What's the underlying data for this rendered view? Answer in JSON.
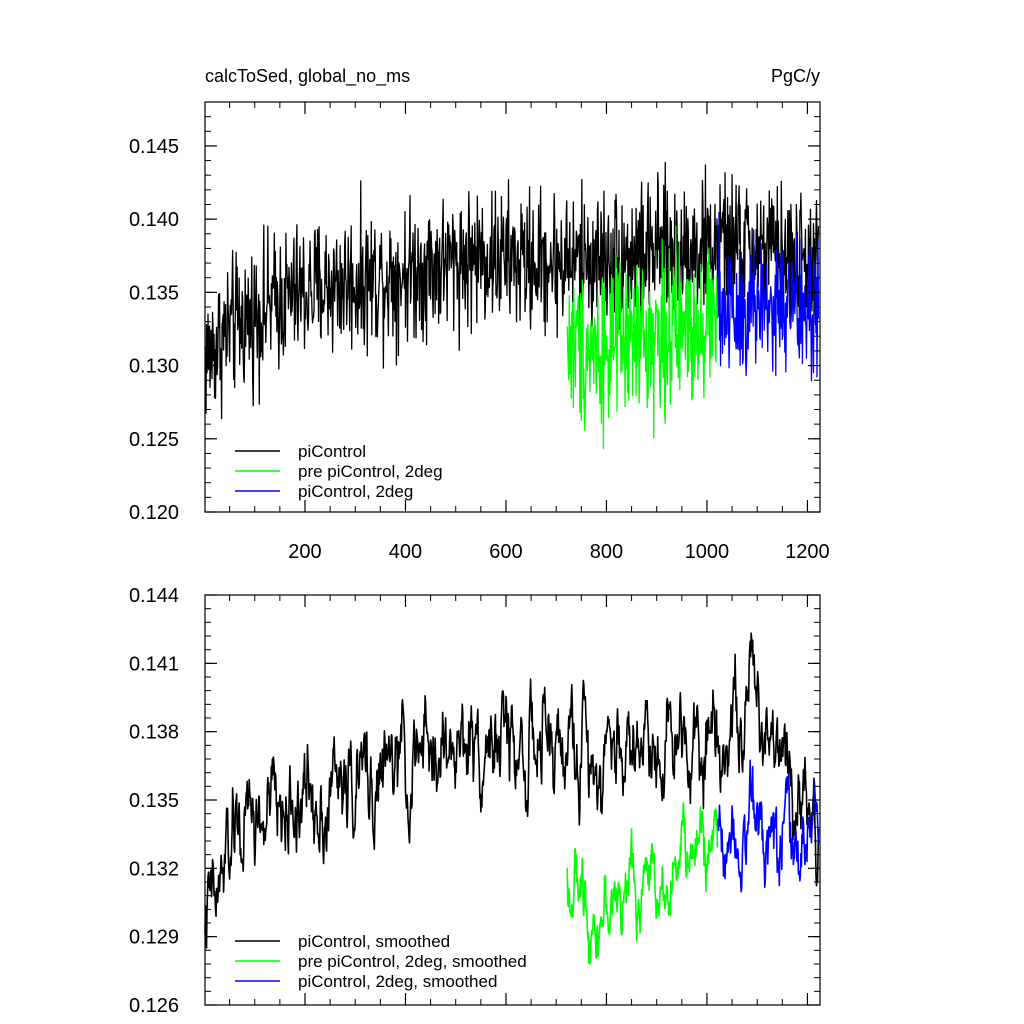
{
  "chart_data": [
    {
      "type": "line",
      "title": "calcToSed, global_no_ms",
      "units": "PgC/y",
      "xlim": [
        1,
        1225
      ],
      "ylim": [
        0.12,
        0.148
      ],
      "xticks": [
        200,
        400,
        600,
        800,
        1000,
        1200
      ],
      "xtick_labels": [
        "200",
        "400",
        "600",
        "800",
        "1000",
        "1200"
      ],
      "yticks": [
        0.12,
        0.125,
        0.13,
        0.135,
        0.14,
        0.145
      ],
      "ytick_labels": [
        "0.120",
        "0.125",
        "0.130",
        "0.135",
        "0.140",
        "0.145"
      ],
      "series": [
        {
          "name": "piControl",
          "color": "#000000",
          "x_start": 1,
          "x_end": 1222,
          "trend_x": [
            1,
            50,
            150,
            250,
            350,
            450,
            550,
            650,
            750,
            850,
            950,
            1050,
            1150,
            1222
          ],
          "trend_y": [
            0.1305,
            0.1325,
            0.1345,
            0.1355,
            0.136,
            0.1368,
            0.1375,
            0.137,
            0.1372,
            0.1375,
            0.138,
            0.1382,
            0.1375,
            0.1368
          ],
          "noise_amplitude": 0.0035
        },
        {
          "name": "pre piControl, 2deg",
          "color": "#00ff00",
          "x_start": 722,
          "x_end": 1021,
          "trend_x": [
            722,
            800,
            900,
            1021
          ],
          "trend_y": [
            0.1315,
            0.1312,
            0.132,
            0.1335
          ],
          "noise_amplitude": 0.004
        },
        {
          "name": "piControl, 2deg",
          "color": "#0000ff",
          "x_start": 1022,
          "x_end": 1222,
          "trend_x": [
            1022,
            1100,
            1222
          ],
          "trend_y": [
            0.1338,
            0.1342,
            0.1335
          ],
          "noise_amplitude": 0.004
        }
      ]
    },
    {
      "type": "line",
      "title": "",
      "xlim": [
        1,
        1225
      ],
      "ylim": [
        0.126,
        0.144
      ],
      "xticks": [
        200,
        400,
        600,
        800,
        1000,
        1200
      ],
      "yticks": [
        0.126,
        0.129,
        0.132,
        0.135,
        0.138,
        0.141,
        0.144
      ],
      "ytick_labels": [
        "0.126",
        "0.129",
        "0.132",
        "0.135",
        "0.138",
        "0.141",
        "0.144"
      ],
      "series": [
        {
          "name": "piControl, smoothed",
          "color": "#000000",
          "x_start": 1,
          "x_end": 1222,
          "trend_x": [
            1,
            20,
            60,
            150,
            250,
            350,
            450,
            550,
            650,
            750,
            850,
            950,
            1050,
            1100,
            1150,
            1222
          ],
          "trend_y": [
            0.13,
            0.13,
            0.1335,
            0.1345,
            0.1355,
            0.136,
            0.1368,
            0.1378,
            0.1372,
            0.1372,
            0.1375,
            0.1382,
            0.1385,
            0.1392,
            0.1378,
            0.134
          ],
          "noise_amplitude": 0.002
        },
        {
          "name": "pre piControl, 2deg, smoothed",
          "color": "#00ff00",
          "x_start": 722,
          "x_end": 1021,
          "trend_x": [
            722,
            780,
            850,
            930,
            1021
          ],
          "trend_y": [
            0.1315,
            0.13,
            0.131,
            0.132,
            0.1335
          ],
          "noise_amplitude": 0.0015
        },
        {
          "name": "piControl, 2deg, smoothed",
          "color": "#0000ff",
          "x_start": 1022,
          "x_end": 1222,
          "trend_x": [
            1022,
            1080,
            1130,
            1180,
            1222
          ],
          "trend_y": [
            0.1335,
            0.1345,
            0.1345,
            0.1325,
            0.1345
          ],
          "noise_amplitude": 0.0018
        }
      ]
    }
  ]
}
